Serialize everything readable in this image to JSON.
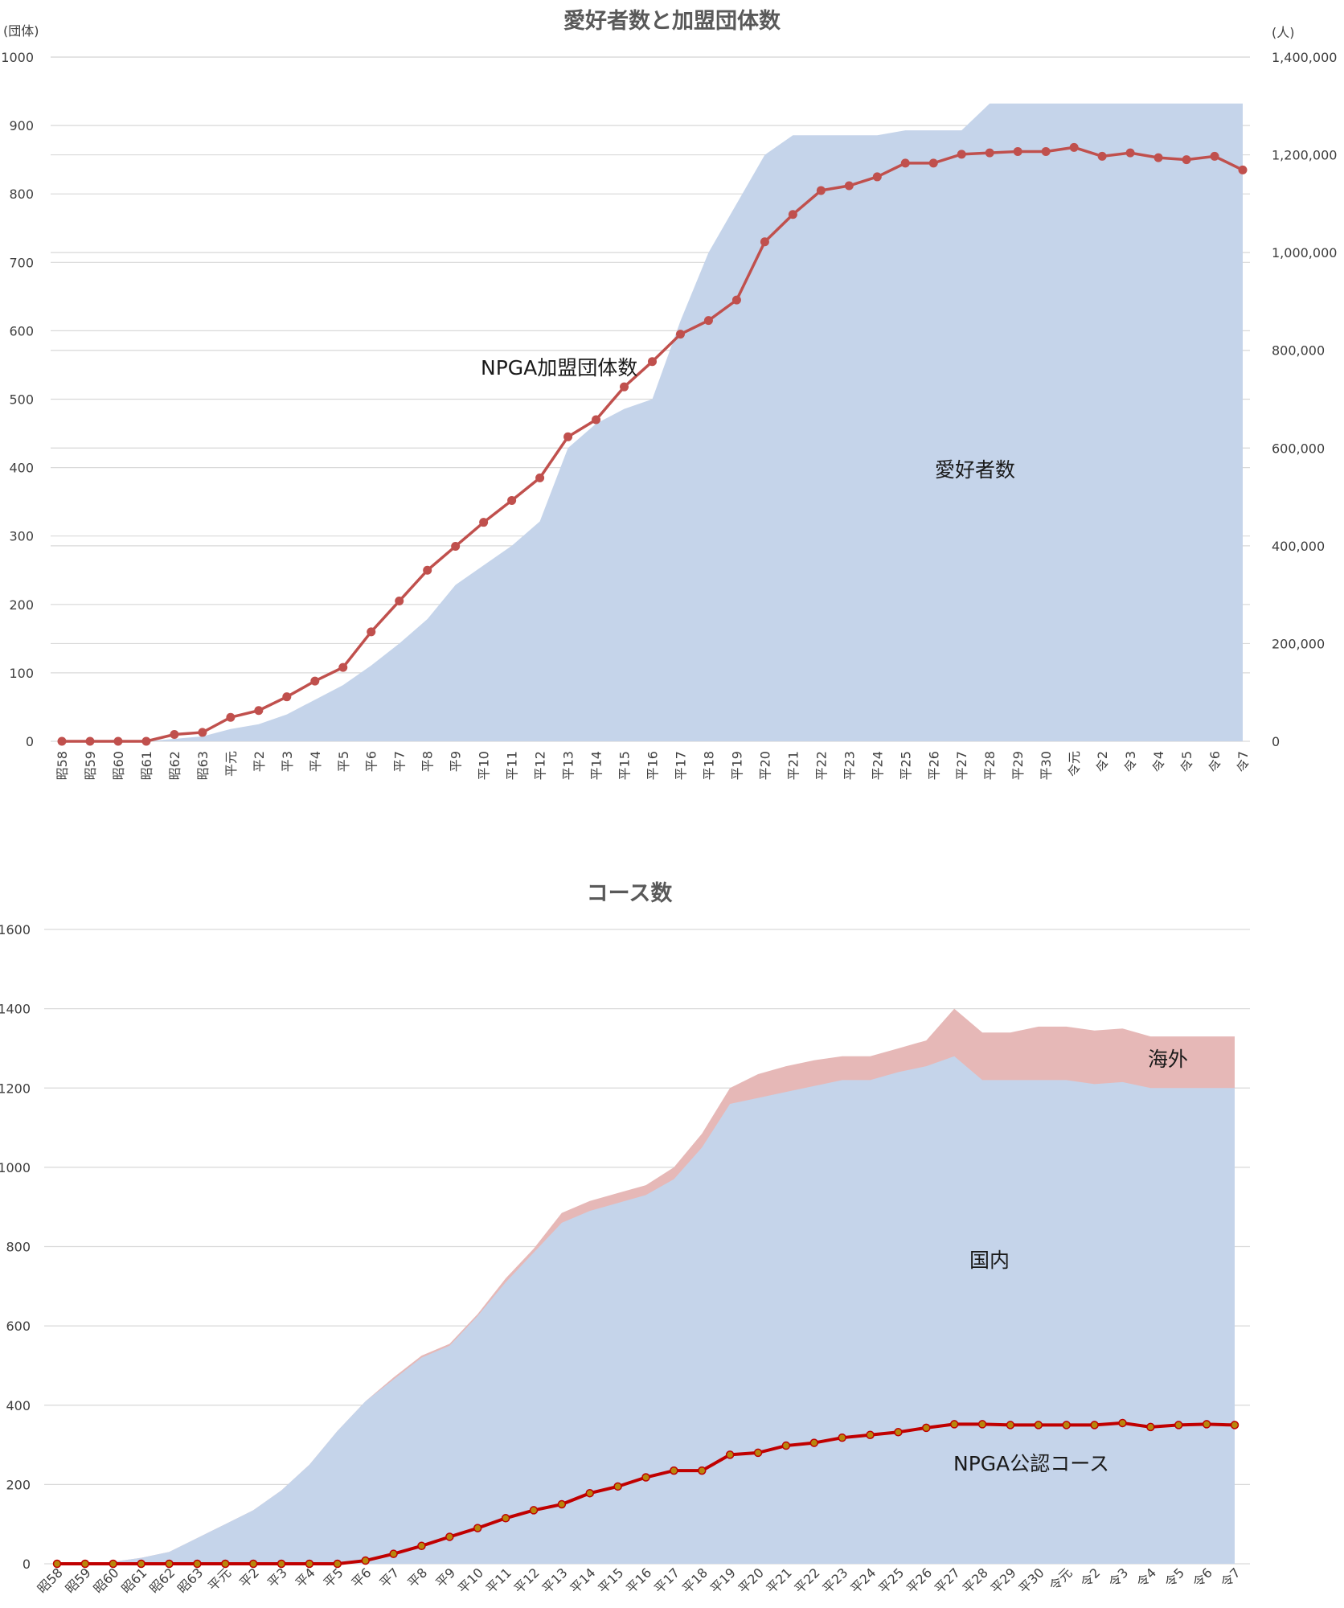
{
  "chart_data": [
    {
      "type": "area+line",
      "title": "愛好者数と加盟団体数",
      "left_unit": "(団体)",
      "right_unit": "(人)",
      "categories": [
        "昭58",
        "昭59",
        "昭60",
        "昭61",
        "昭62",
        "昭63",
        "平元",
        "平2",
        "平3",
        "平4",
        "平5",
        "平6",
        "平7",
        "平8",
        "平9",
        "平10",
        "平11",
        "平12",
        "平13",
        "平14",
        "平15",
        "平16",
        "平17",
        "平18",
        "平19",
        "平20",
        "平21",
        "平22",
        "平23",
        "平24",
        "平25",
        "平26",
        "平27",
        "平28",
        "平29",
        "平30",
        "令元",
        "令2",
        "令3",
        "令4",
        "令5",
        "令6",
        "令7"
      ],
      "left_axis": {
        "min": 0,
        "max": 1000,
        "ticks": [
          "0",
          "100",
          "200",
          "300",
          "400",
          "500",
          "600",
          "700",
          "800",
          "900",
          "1000"
        ]
      },
      "right_axis": {
        "min": 0,
        "max": 1400000,
        "ticks": [
          "0",
          "200,000",
          "400,000",
          "600,000",
          "800,000",
          "1,000,000",
          "1,200,000",
          "1,400,000"
        ]
      },
      "series": [
        {
          "name": "愛好者数",
          "kind": "area",
          "axis": "right",
          "color": "#c5d4ea",
          "values": [
            0,
            0,
            0,
            0,
            5000,
            10000,
            25000,
            35000,
            55000,
            85000,
            115000,
            155000,
            200000,
            250000,
            320000,
            360000,
            400000,
            450000,
            600000,
            650000,
            680000,
            700000,
            860000,
            1000000,
            1100000,
            1200000,
            1240000,
            1240000,
            1240000,
            1240000,
            1250000,
            1250000,
            1250000,
            1305000,
            1305000,
            1305000,
            1305000,
            1305000,
            1305000,
            1305000,
            1305000,
            1305000,
            1305000
          ]
        },
        {
          "name": "NPGA加盟団体数",
          "kind": "line",
          "axis": "left",
          "color": "#c0504d",
          "values": [
            0,
            0,
            0,
            0,
            10,
            13,
            35,
            45,
            65,
            88,
            108,
            160,
            205,
            250,
            285,
            320,
            352,
            385,
            445,
            470,
            518,
            555,
            595,
            615,
            645,
            730,
            770,
            805,
            812,
            825,
            845,
            845,
            858,
            860,
            862,
            862,
            868,
            855,
            860,
            853,
            850,
            855,
            835
          ]
        }
      ],
      "annotations": {
        "line_label": "NPGA加盟団体数",
        "area_label": "愛好者数"
      }
    },
    {
      "type": "stacked_area+line",
      "title": "コース数",
      "categories": [
        "昭58",
        "昭59",
        "昭60",
        "昭61",
        "昭62",
        "昭63",
        "平元",
        "平2",
        "平3",
        "平4",
        "平5",
        "平6",
        "平7",
        "平8",
        "平9",
        "平10",
        "平11",
        "平12",
        "平13",
        "平14",
        "平15",
        "平16",
        "平17",
        "平18",
        "平19",
        "平20",
        "平21",
        "平22",
        "平23",
        "平24",
        "平25",
        "平26",
        "平27",
        "平28",
        "平29",
        "平30",
        "令元",
        "令2",
        "令3",
        "令4",
        "令5",
        "令6",
        "令7"
      ],
      "y_axis": {
        "min": 0,
        "max": 1600,
        "ticks": [
          "0",
          "200",
          "400",
          "600",
          "800",
          "1000",
          "1200",
          "1400",
          "1600"
        ]
      },
      "series": [
        {
          "name": "国内",
          "kind": "area",
          "color": "#c5d4ea",
          "values": [
            0,
            0,
            5,
            15,
            30,
            65,
            100,
            135,
            185,
            250,
            335,
            410,
            465,
            520,
            550,
            625,
            710,
            785,
            860,
            890,
            910,
            930,
            970,
            1050,
            1160,
            1175,
            1190,
            1205,
            1220,
            1220,
            1240,
            1255,
            1280,
            1220,
            1220,
            1220,
            1220,
            1210,
            1215,
            1200,
            1200,
            1200,
            1200
          ]
        },
        {
          "name": "海外",
          "kind": "area",
          "color": "#e6b8b7",
          "values": [
            0,
            0,
            0,
            0,
            0,
            0,
            0,
            0,
            0,
            0,
            0,
            0,
            5,
            5,
            5,
            5,
            10,
            10,
            25,
            25,
            25,
            25,
            30,
            35,
            40,
            60,
            65,
            65,
            60,
            60,
            60,
            65,
            120,
            120,
            120,
            135,
            135,
            135,
            135,
            130,
            130,
            130,
            130
          ]
        },
        {
          "name": "NPGA公認コース",
          "kind": "line",
          "color": "#c00000",
          "values": [
            0,
            0,
            0,
            0,
            0,
            0,
            0,
            0,
            0,
            0,
            0,
            8,
            25,
            45,
            68,
            90,
            115,
            135,
            150,
            178,
            195,
            218,
            235,
            235,
            275,
            280,
            298,
            305,
            318,
            325,
            332,
            343,
            352,
            352,
            350,
            350,
            350,
            350,
            355,
            345,
            350,
            352,
            350
          ]
        }
      ],
      "annotations": {
        "overseas_label": "海外",
        "domestic_label": "国内",
        "line_label": "NPGA公認コース"
      }
    }
  ]
}
